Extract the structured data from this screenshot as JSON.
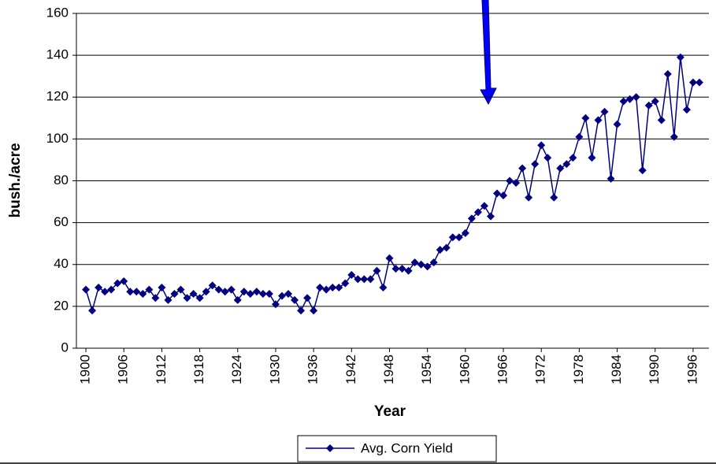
{
  "chart_data": {
    "type": "line",
    "x": [
      1900,
      1901,
      1902,
      1903,
      1904,
      1905,
      1906,
      1907,
      1908,
      1909,
      1910,
      1911,
      1912,
      1913,
      1914,
      1915,
      1916,
      1917,
      1918,
      1919,
      1920,
      1921,
      1922,
      1923,
      1924,
      1925,
      1926,
      1927,
      1928,
      1929,
      1930,
      1931,
      1932,
      1933,
      1934,
      1935,
      1936,
      1937,
      1938,
      1939,
      1940,
      1941,
      1942,
      1943,
      1944,
      1945,
      1946,
      1947,
      1948,
      1949,
      1950,
      1951,
      1952,
      1953,
      1954,
      1955,
      1956,
      1957,
      1958,
      1959,
      1960,
      1961,
      1962,
      1963,
      1964,
      1965,
      1966,
      1967,
      1968,
      1969,
      1970,
      1971,
      1972,
      1973,
      1974,
      1975,
      1976,
      1977,
      1978,
      1979,
      1980,
      1981,
      1982,
      1983,
      1984,
      1985,
      1986,
      1987,
      1988,
      1989,
      1990,
      1991,
      1992,
      1993,
      1994,
      1995,
      1996,
      1997
    ],
    "series": [
      {
        "name": "Avg. Corn Yield",
        "color": "#000080",
        "values": [
          28,
          18,
          29,
          27,
          28,
          31,
          32,
          27,
          27,
          26,
          28,
          24,
          29,
          23,
          26,
          28,
          24,
          26,
          24,
          27,
          30,
          28,
          27,
          28,
          23,
          27,
          26,
          27,
          26,
          26,
          21,
          25,
          26,
          23,
          18,
          24,
          18,
          29,
          28,
          29,
          29,
          31,
          35,
          33,
          33,
          33,
          37,
          29,
          43,
          38,
          38,
          37,
          41,
          40,
          39,
          41,
          47,
          48,
          53,
          53,
          55,
          62,
          65,
          68,
          63,
          74,
          73,
          80,
          79,
          86,
          72,
          88,
          97,
          91,
          72,
          86,
          88,
          91,
          101,
          110,
          91,
          109,
          113,
          81,
          107,
          118,
          119,
          120,
          85,
          116,
          118,
          109,
          131,
          101,
          139,
          114,
          127,
          127
        ]
      }
    ],
    "xlabel": "Year",
    "ylabel": "bush./acre",
    "xlim": [
      1898.5,
      1998.5
    ],
    "xticks": [
      1900,
      1906,
      1912,
      1918,
      1924,
      1930,
      1936,
      1942,
      1948,
      1954,
      1960,
      1966,
      1972,
      1978,
      1984,
      1990,
      1996
    ],
    "ylim": [
      0,
      160
    ],
    "yticks": [
      0,
      20,
      40,
      60,
      80,
      100,
      120,
      140,
      160
    ],
    "grid": true,
    "legend": "bottom"
  }
}
